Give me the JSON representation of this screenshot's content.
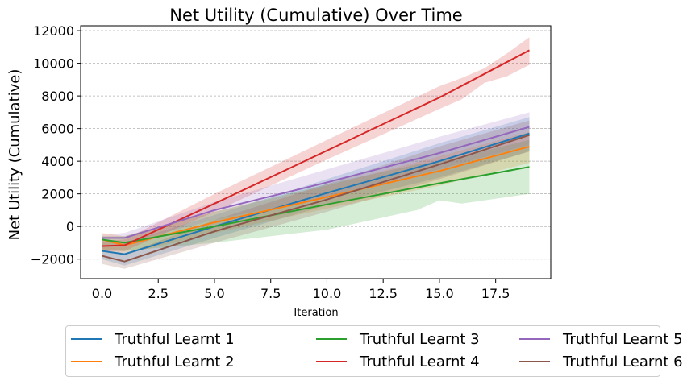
{
  "chart_data": {
    "type": "line",
    "title": "Net Utility (Cumulative) Over Time",
    "xlabel": "Iteration",
    "ylabel": "Net Utility (Cumulative)",
    "xlim": [
      -0.95,
      19.95
    ],
    "ylim": [
      -3200,
      12300
    ],
    "xticks": [
      0,
      2.5,
      5,
      7.5,
      10,
      12.5,
      15,
      17.5
    ],
    "xtick_labels": [
      "0.0",
      "2.5",
      "5.0",
      "7.5",
      "10.0",
      "12.5",
      "15.0",
      "17.5"
    ],
    "yticks": [
      -2000,
      0,
      2000,
      4000,
      6000,
      8000,
      10000,
      12000
    ],
    "ytick_labels": [
      "−2000",
      "0",
      "2000",
      "4000",
      "6000",
      "8000",
      "10000",
      "12000"
    ],
    "grid": "y-axis dashed",
    "legend_position": "below chart, 3 columns",
    "series": [
      {
        "name": "Truthful Learnt 1",
        "color": "#1f77b4",
        "points": [
          [
            0,
            -1500
          ],
          [
            1,
            -1700
          ],
          [
            5,
            0
          ],
          [
            10,
            2050
          ],
          [
            15,
            4000
          ],
          [
            19,
            5700
          ]
        ],
        "band": [
          [
            0,
            -2000,
            -1000
          ],
          [
            1,
            -2400,
            -1000
          ],
          [
            5,
            -700,
            700
          ],
          [
            10,
            1300,
            2900
          ],
          [
            15,
            3000,
            5100
          ],
          [
            19,
            4600,
            6700
          ]
        ]
      },
      {
        "name": "Truthful Learnt 2",
        "color": "#ff7f0e",
        "points": [
          [
            0,
            -800
          ],
          [
            1,
            -1150
          ],
          [
            5,
            250
          ],
          [
            10,
            1800
          ],
          [
            15,
            3400
          ],
          [
            19,
            4900
          ]
        ],
        "band": [
          [
            0,
            -1400,
            -400
          ],
          [
            1,
            -1700,
            -600
          ],
          [
            5,
            -400,
            900
          ],
          [
            10,
            1100,
            2500
          ],
          [
            15,
            2500,
            4300
          ],
          [
            19,
            3900,
            5800
          ]
        ]
      },
      {
        "name": "Truthful Learnt 3",
        "color": "#2ca02c",
        "points": [
          [
            0,
            -800
          ],
          [
            1,
            -1000
          ],
          [
            5,
            0
          ],
          [
            10,
            1350
          ],
          [
            15,
            2650
          ],
          [
            19,
            3650
          ]
        ],
        "band": [
          [
            0,
            -1400,
            -600
          ],
          [
            1,
            -1500,
            -600
          ],
          [
            5,
            -1000,
            900
          ],
          [
            10,
            -200,
            2600
          ],
          [
            14,
            1000,
            3800
          ],
          [
            15,
            1600,
            4000
          ],
          [
            16,
            1400,
            4300
          ],
          [
            19,
            2000,
            5300
          ]
        ]
      },
      {
        "name": "Truthful Learnt 4",
        "color": "#d62728",
        "points": [
          [
            0,
            -1200
          ],
          [
            1,
            -1150
          ],
          [
            5,
            1400
          ],
          [
            10,
            4650
          ],
          [
            15,
            7900
          ],
          [
            19,
            10800
          ]
        ],
        "band": [
          [
            0,
            -1500,
            -900
          ],
          [
            1,
            -1500,
            -800
          ],
          [
            5,
            900,
            2000
          ],
          [
            10,
            4100,
            5300
          ],
          [
            15,
            7200,
            8600
          ],
          [
            16,
            7800,
            9100
          ],
          [
            17,
            8800,
            9700
          ],
          [
            18,
            9200,
            10600
          ],
          [
            19,
            9900,
            11600
          ]
        ]
      },
      {
        "name": "Truthful Learnt 5",
        "color": "#9467bd",
        "points": [
          [
            0,
            -700
          ],
          [
            1,
            -700
          ],
          [
            5,
            1000
          ],
          [
            10,
            2700
          ],
          [
            15,
            4500
          ],
          [
            19,
            6100
          ]
        ],
        "band": [
          [
            0,
            -1000,
            -500
          ],
          [
            1,
            -1000,
            -400
          ],
          [
            5,
            400,
            1500
          ],
          [
            10,
            1800,
            3500
          ],
          [
            15,
            3500,
            5500
          ],
          [
            19,
            5000,
            7000
          ]
        ]
      },
      {
        "name": "Truthful Learnt 6",
        "color": "#8c564b",
        "points": [
          [
            0,
            -1800
          ],
          [
            1,
            -2150
          ],
          [
            5,
            -300
          ],
          [
            10,
            1650
          ],
          [
            15,
            3800
          ],
          [
            19,
            5600
          ]
        ],
        "band": [
          [
            0,
            -2300,
            -1400
          ],
          [
            1,
            -2600,
            -1700
          ],
          [
            5,
            -1000,
            400
          ],
          [
            10,
            900,
            2600
          ],
          [
            15,
            2900,
            4900
          ],
          [
            19,
            4600,
            6500
          ]
        ]
      }
    ]
  }
}
